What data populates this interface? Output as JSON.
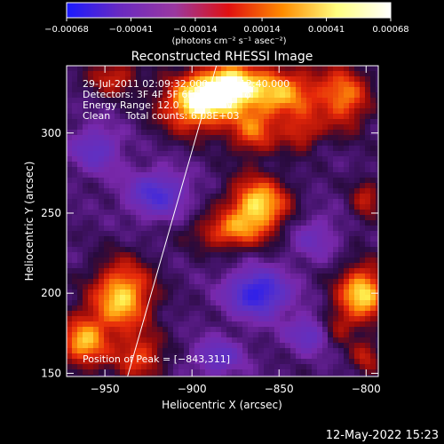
{
  "chart_data": {
    "type": "heatmap",
    "title": "Reconstructed RHESSI Image",
    "xlabel": "Heliocentric X (arcsec)",
    "ylabel": "Heliocentric Y (arcsec)",
    "xlim": [
      -972,
      -793
    ],
    "ylim": [
      148,
      342
    ],
    "x_ticks": [
      -950,
      -900,
      -850,
      -800
    ],
    "x_tick_labels": [
      "−950",
      "−900",
      "−850",
      "−800"
    ],
    "y_ticks": [
      150,
      200,
      250,
      300
    ],
    "y_tick_labels": [
      "150",
      "200",
      "250",
      "300"
    ],
    "colorbar": {
      "min": -0.00068,
      "max": 0.00068,
      "ticks": [
        -0.00068,
        -0.00041,
        -0.00014,
        0.00014,
        0.00041,
        0.00068
      ],
      "tick_labels": [
        "−0.00068",
        "−0.00041",
        "−0.00014",
        "0.00014",
        "0.00041",
        "0.00068"
      ],
      "unit_label": "(photons cm⁻² s⁻¹ asec⁻²)",
      "colors": [
        "#1a1aff",
        "#6a2ac0",
        "#9a38a0",
        "#e01010",
        "#ff8c00",
        "#ffff80",
        "#ffffff"
      ]
    },
    "annotations": {
      "line1": "29-Jul-2011 02:09:32.000 to 02:12:40.000",
      "line2": "Detectors: 3F 4F 5F 6F 7F 8F, All φ",
      "line3": "Energy Range: 12.0 – 25.0 keV",
      "line4": "Clean     Total counts: 6.08E+03",
      "peak": "Position of Peak = [−843,311]"
    },
    "sources": [
      {
        "x": -898,
        "y": 318,
        "amp": 0.00062,
        "sx": 14,
        "sy": 12
      },
      {
        "x": -880,
        "y": 330,
        "amp": 0.00055,
        "sx": 12,
        "sy": 10
      },
      {
        "x": -850,
        "y": 325,
        "amp": 0.0005,
        "sx": 18,
        "sy": 12
      },
      {
        "x": -865,
        "y": 300,
        "amp": 0.00035,
        "sx": 10,
        "sy": 10
      },
      {
        "x": -812,
        "y": 322,
        "amp": 0.0004,
        "sx": 10,
        "sy": 14
      },
      {
        "x": -945,
        "y": 335,
        "amp": 0.0003,
        "sx": 10,
        "sy": 8
      },
      {
        "x": -862,
        "y": 255,
        "amp": 0.0006,
        "sx": 12,
        "sy": 12
      },
      {
        "x": -880,
        "y": 238,
        "amp": 0.00035,
        "sx": 14,
        "sy": 8
      },
      {
        "x": -837,
        "y": 300,
        "amp": 0.00028,
        "sx": 8,
        "sy": 8
      },
      {
        "x": -940,
        "y": 198,
        "amp": 0.00058,
        "sx": 12,
        "sy": 15
      },
      {
        "x": -962,
        "y": 170,
        "amp": 0.0005,
        "sx": 10,
        "sy": 12
      },
      {
        "x": -930,
        "y": 160,
        "amp": 0.00035,
        "sx": 10,
        "sy": 10
      },
      {
        "x": -802,
        "y": 200,
        "amp": 0.0006,
        "sx": 10,
        "sy": 12
      },
      {
        "x": -818,
        "y": 178,
        "amp": 0.0003,
        "sx": 8,
        "sy": 8
      },
      {
        "x": -800,
        "y": 258,
        "amp": 0.00025,
        "sx": 6,
        "sy": 10
      },
      {
        "x": -800,
        "y": 160,
        "amp": 0.00025,
        "sx": 6,
        "sy": 8
      },
      {
        "x": -862,
        "y": 200,
        "amp": -0.00055,
        "sx": 12,
        "sy": 10
      },
      {
        "x": -920,
        "y": 262,
        "amp": -0.0004,
        "sx": 12,
        "sy": 10
      },
      {
        "x": -830,
        "y": 175,
        "amp": -0.00035,
        "sx": 10,
        "sy": 8
      },
      {
        "x": -885,
        "y": 160,
        "amp": -0.0003,
        "sx": 10,
        "sy": 8
      },
      {
        "x": -955,
        "y": 290,
        "amp": -0.0003,
        "sx": 10,
        "sy": 10
      },
      {
        "x": -830,
        "y": 235,
        "amp": -0.0002,
        "sx": 10,
        "sy": 10
      }
    ],
    "line": {
      "x1": -937,
      "y1": 148,
      "x2": -886,
      "y2": 342
    }
  },
  "footer": {
    "timestamp": "12-May-2022 15:23"
  }
}
